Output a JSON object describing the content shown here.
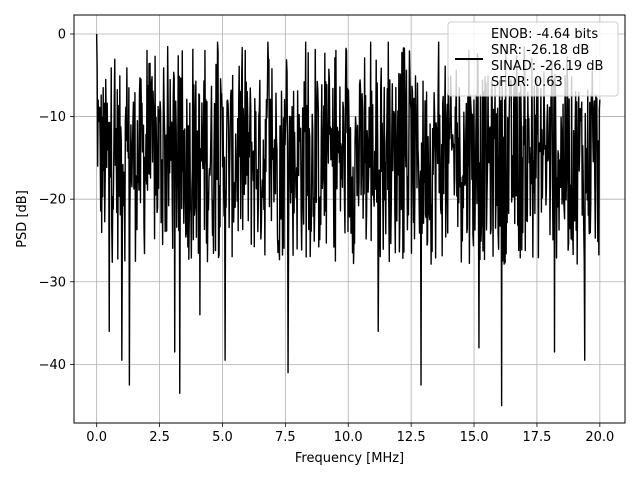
{
  "chart_data": {
    "type": "line",
    "xlabel": "Frequency [MHz]",
    "ylabel": "PSD [dB]",
    "xlim": [
      -0.9,
      21.0
    ],
    "ylim": [
      -47.1,
      2.3
    ],
    "xticks": [
      0.0,
      2.5,
      5.0,
      7.5,
      10.0,
      12.5,
      15.0,
      17.5,
      20.0
    ],
    "xtick_labels": [
      "0.0",
      "2.5",
      "5.0",
      "7.5",
      "10.0",
      "12.5",
      "15.0",
      "17.5",
      "20.0"
    ],
    "yticks": [
      0,
      -10,
      -20,
      -30,
      -40
    ],
    "ytick_labels": [
      "0",
      "−10",
      "−20",
      "−30",
      "−40"
    ],
    "grid": true,
    "legend_position": "top-right",
    "legend": {
      "lines": [
        "ENOB: -4.64 bits",
        "SNR: -26.18 dB",
        "SINAD: -26.19 dB",
        "SFDR: 0.63"
      ]
    },
    "series": [
      {
        "color": "#000000",
        "description": "noise-like power spectral density trace, approximately 1000 points from 0 to 20 MHz",
        "x_range": [
          0.0,
          20.0
        ],
        "typical_band": [
          -28,
          -5
        ],
        "peak": {
          "x": 0.0,
          "y": 0.0
        },
        "dips": [
          {
            "x": 0.5,
            "y": -36
          },
          {
            "x": 1.0,
            "y": -39.5
          },
          {
            "x": 1.3,
            "y": -42.5
          },
          {
            "x": 3.3,
            "y": -43.5
          },
          {
            "x": 3.1,
            "y": -38.5
          },
          {
            "x": 4.1,
            "y": -34
          },
          {
            "x": 5.1,
            "y": -39.5
          },
          {
            "x": 7.6,
            "y": -41
          },
          {
            "x": 11.2,
            "y": -36
          },
          {
            "x": 12.9,
            "y": -42.5
          },
          {
            "x": 15.2,
            "y": -38
          },
          {
            "x": 16.1,
            "y": -45
          },
          {
            "x": 18.2,
            "y": -38.5
          },
          {
            "x": 19.4,
            "y": -39.5
          }
        ],
        "spikes": [
          {
            "x": 2.0,
            "y": -2
          },
          {
            "x": 4.3,
            "y": -2
          },
          {
            "x": 4.8,
            "y": -1
          },
          {
            "x": 5.9,
            "y": -2
          },
          {
            "x": 6.8,
            "y": -1
          },
          {
            "x": 8.3,
            "y": -1
          },
          {
            "x": 9.5,
            "y": -2
          },
          {
            "x": 10.9,
            "y": -1
          },
          {
            "x": 11.6,
            "y": -1
          },
          {
            "x": 13.6,
            "y": -1
          },
          {
            "x": 14.8,
            "y": -2
          }
        ]
      }
    ]
  }
}
